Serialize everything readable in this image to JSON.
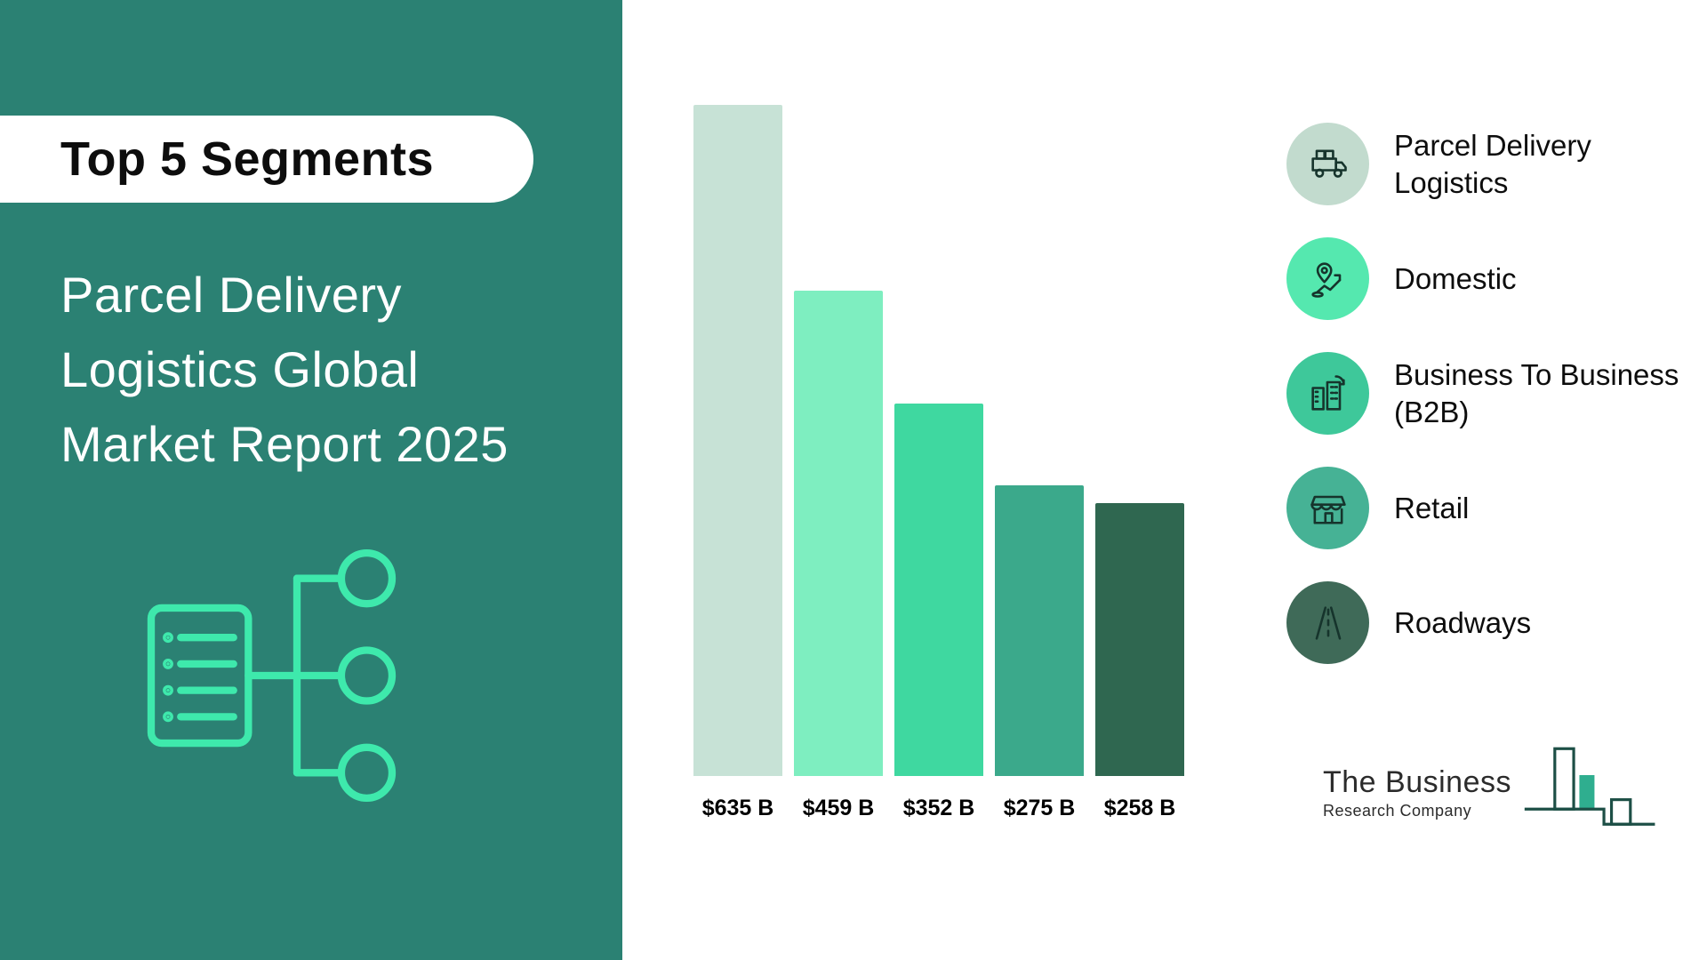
{
  "panel": {
    "badge": "Top 5 Segments",
    "title_lines": [
      "Parcel Delivery",
      "Logistics Global",
      "Market Report 2025"
    ]
  },
  "chart_data": {
    "type": "bar",
    "title": "Parcel Delivery Logistics Global Market Report 2025 - Top 5 Segments",
    "categories": [
      "Parcel Delivery Logistics",
      "Domestic",
      "Business To Business (B2B)",
      "Retail",
      "Roadways"
    ],
    "values": [
      635,
      459,
      352,
      275,
      258
    ],
    "labels": [
      "$635 B",
      "$459 B",
      "$352 B",
      "$275 B",
      "$258 B"
    ],
    "bar_colors": [
      "#c7e2d6",
      "#7eeec0",
      "#3fd8a0",
      "#3ba98b",
      "#2f6750"
    ],
    "ylim": [
      0,
      635
    ],
    "unit": "USD Billions",
    "grid": false,
    "legend_position": "right"
  },
  "legend": {
    "items": [
      {
        "label": "Parcel Delivery Logistics",
        "icon": "truck-boxes-icon",
        "color": "#c2dbce"
      },
      {
        "label": "Domestic",
        "icon": "map-location-icon",
        "color": "#55e8af"
      },
      {
        "label": "Business To Business (B2B)",
        "icon": "building-exchange-icon",
        "color": "#3ec89a"
      },
      {
        "label": "Retail",
        "icon": "storefront-icon",
        "color": "#46b295"
      },
      {
        "label": "Roadways",
        "icon": "road-icon",
        "color": "#3f6a58"
      }
    ]
  },
  "logo": {
    "line1": "The Business",
    "line2": "Research Company",
    "accent_color": "#2fae8f",
    "outline_color": "#1d4f46"
  },
  "colors": {
    "panel_bg": "#2b8173",
    "panel_accent": "#3ee9ac"
  }
}
